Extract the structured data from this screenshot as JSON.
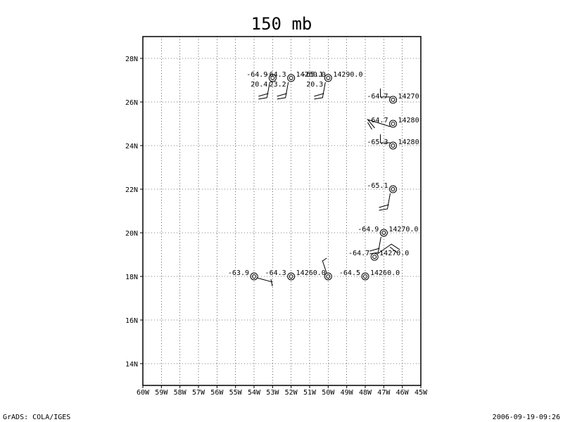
{
  "title": "150 mb",
  "footer": {
    "left": "GrADS: COLA/IGES",
    "right": "2006-09-19-09:26"
  },
  "map": {
    "lon_range": [
      -60,
      -45
    ],
    "lat_range": [
      13,
      29
    ],
    "x_ticks": [
      "60W",
      "59W",
      "58W",
      "57W",
      "56W",
      "55W",
      "54W",
      "53W",
      "52W",
      "51W",
      "50W",
      "49W",
      "48W",
      "47W",
      "46W",
      "45W"
    ],
    "y_ticks": [
      "14N",
      "16N",
      "18N",
      "20N",
      "22N",
      "24N",
      "26N",
      "28N"
    ],
    "grid": "dotted"
  },
  "stations": [
    {
      "lon": -53.0,
      "lat": 27.1,
      "temp": "-64.9",
      "height": "",
      "dew": "20.4",
      "barb": "ne"
    },
    {
      "lon": -52.0,
      "lat": 27.1,
      "temp": "-64.3",
      "height": "14260.0",
      "dew": "23.2",
      "barb": "ne"
    },
    {
      "lon": -50.0,
      "lat": 27.1,
      "temp": "-65.1",
      "height": "14290.0",
      "dew": "20.3",
      "barb": "ne"
    },
    {
      "lon": -46.5,
      "lat": 26.1,
      "temp": "-64.7",
      "height": "14270",
      "dew": "",
      "barb": "up"
    },
    {
      "lon": -46.5,
      "lat": 25.0,
      "temp": "-64.7",
      "height": "14280",
      "dew": "",
      "barb": "wide"
    },
    {
      "lon": -46.5,
      "lat": 24.0,
      "temp": "-65.3",
      "height": "14280",
      "dew": "",
      "barb": "up"
    },
    {
      "lon": -46.5,
      "lat": 22.0,
      "temp": "-65.1",
      "height": "",
      "dew": "",
      "barb": "ne"
    },
    {
      "lon": -47.0,
      "lat": 20.0,
      "temp": "-64.9",
      "height": "14270.0",
      "dew": "",
      "barb": "ne"
    },
    {
      "lon": -47.5,
      "lat": 18.9,
      "temp": "-64.7",
      "height": "14270.0",
      "dew": "",
      "barb": "ne2"
    },
    {
      "lon": -54.0,
      "lat": 18.0,
      "temp": "-63.9",
      "height": "",
      "dew": "",
      "barb": "se"
    },
    {
      "lon": -52.0,
      "lat": 18.0,
      "temp": "-64.3",
      "height": "14260.0",
      "dew": "",
      "barb": "none"
    },
    {
      "lon": -50.0,
      "lat": 18.0,
      "temp": "",
      "height": "",
      "dew": "",
      "barb": "nw"
    },
    {
      "lon": -48.0,
      "lat": 18.0,
      "temp": "-64.5",
      "height": "14260.0",
      "dew": "",
      "barb": "none"
    }
  ]
}
